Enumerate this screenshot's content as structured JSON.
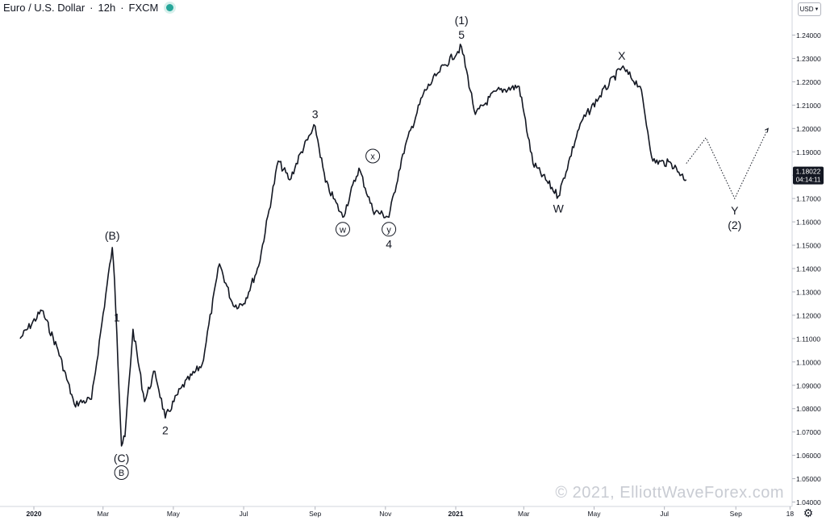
{
  "header": {
    "symbol": "Euro / U.S. Dollar",
    "sep1": "·",
    "interval": "12h",
    "sep2": "·",
    "source": "FXCM"
  },
  "currency_button": "USD",
  "watermark": "© 2021, ElliottWaveForex.com",
  "colors": {
    "candles": "#131722",
    "axis": "#d1d4dc",
    "price_tag_bg": "#131722",
    "status_dot": "#26a69a"
  },
  "icons": [
    "status-dot-icon",
    "chevron-down-icon",
    "gear-icon"
  ],
  "chart_data": {
    "type": "line",
    "x_tick_labels": [
      "2020",
      "Mar",
      "May",
      "Jul",
      "Sep",
      "Nov",
      "2021",
      "Mar",
      "May",
      "Jul",
      "Sep",
      "18"
    ],
    "y_tick_labels": [
      "1.24000",
      "1.23000",
      "1.22000",
      "1.21000",
      "1.20000",
      "1.19000",
      "1.18000",
      "1.17000",
      "1.16000",
      "1.15000",
      "1.14000",
      "1.13000",
      "1.12000",
      "1.11000",
      "1.10000",
      "1.09000",
      "1.08000",
      "1.07000",
      "1.06000",
      "1.05000",
      "1.04000"
    ],
    "ylim": [
      1.0395,
      1.2515
    ],
    "last_price": "1.18022",
    "countdown": "04:14:11",
    "series": [
      {
        "x": [
          "2019-12-20",
          "2020-01-08",
          "2020-01-22",
          "2020-02-05",
          "2020-02-20",
          "2020-03-09",
          "2020-03-11",
          "2020-03-13",
          "2020-03-17",
          "2020-03-20",
          "2020-03-27",
          "2020-04-06",
          "2020-04-15",
          "2020-04-24",
          "2020-05-08",
          "2020-05-26",
          "2020-06-10",
          "2020-06-22",
          "2020-07-01",
          "2020-07-14",
          "2020-07-31",
          "2020-08-10",
          "2020-08-20",
          "2020-09-01",
          "2020-09-10",
          "2020-09-25",
          "2020-10-09",
          "2020-10-21",
          "2020-11-04",
          "2020-11-16",
          "2020-12-04",
          "2020-12-17",
          "2021-01-06",
          "2021-01-18",
          "2021-02-05",
          "2021-02-25",
          "2021-03-09",
          "2021-03-31",
          "2021-04-19",
          "2021-05-06",
          "2021-05-25",
          "2021-06-10",
          "2021-06-21",
          "2021-07-07",
          "2021-07-20"
        ],
        "y": [
          1.11,
          1.122,
          1.105,
          1.082,
          1.084,
          1.149,
          1.135,
          1.112,
          1.064,
          1.068,
          1.114,
          1.083,
          1.096,
          1.076,
          1.089,
          1.099,
          1.142,
          1.124,
          1.125,
          1.141,
          1.186,
          1.178,
          1.19,
          1.201,
          1.177,
          1.162,
          1.183,
          1.165,
          1.162,
          1.189,
          1.215,
          1.224,
          1.235,
          1.206,
          1.216,
          1.218,
          1.185,
          1.171,
          1.202,
          1.214,
          1.226,
          1.218,
          1.186,
          1.185,
          1.178
        ]
      }
    ],
    "projection": {
      "x": [
        "2021-07-20",
        "2021-08-06",
        "2021-08-31",
        "2021-09-29"
      ],
      "y": [
        1.185,
        1.196,
        1.17,
        1.2
      ]
    },
    "annotations": [
      {
        "text": "(B)",
        "x": "2020-03-09",
        "y": 1.149,
        "pos": "above"
      },
      {
        "text": "1",
        "x": "2020-03-13",
        "y": 1.114,
        "pos": "above"
      },
      {
        "text": "(C)",
        "x": "2020-03-17",
        "y": 1.064,
        "pos": "below"
      },
      {
        "text": "B",
        "x": "2020-03-17",
        "y": 1.064,
        "pos": "below2",
        "circled": true
      },
      {
        "text": "2",
        "x": "2020-04-24",
        "y": 1.076,
        "pos": "below"
      },
      {
        "text": "3",
        "x": "2020-09-01",
        "y": 1.201,
        "pos": "above"
      },
      {
        "text": "w",
        "x": "2020-09-25",
        "y": 1.162,
        "pos": "below",
        "circled": true
      },
      {
        "text": "x",
        "x": "2020-10-21",
        "y": 1.183,
        "pos": "above",
        "circled": true
      },
      {
        "text": "y",
        "x": "2020-11-04",
        "y": 1.162,
        "pos": "below",
        "circled": true
      },
      {
        "text": "4",
        "x": "2020-11-04",
        "y": 1.162,
        "pos": "below2"
      },
      {
        "text": "5",
        "x": "2021-01-06",
        "y": 1.235,
        "pos": "above"
      },
      {
        "text": "(1)",
        "x": "2021-01-06",
        "y": 1.235,
        "pos": "above2"
      },
      {
        "text": "W",
        "x": "2021-03-31",
        "y": 1.171,
        "pos": "below"
      },
      {
        "text": "X",
        "x": "2021-05-25",
        "y": 1.226,
        "pos": "above"
      },
      {
        "text": "Y",
        "x": "2021-08-31",
        "y": 1.17,
        "pos": "below"
      },
      {
        "text": "(2)",
        "x": "2021-08-31",
        "y": 1.17,
        "pos": "below2"
      }
    ],
    "grid": false,
    "legend": "none"
  }
}
